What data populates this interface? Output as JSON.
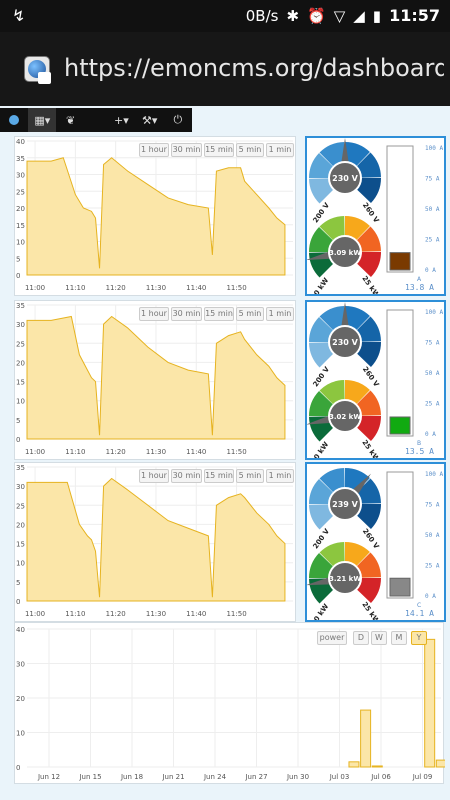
{
  "status": {
    "left_icon": "usb-icon",
    "speed": "0B/s",
    "time": "11:57",
    "icons": [
      "bluetooth-icon",
      "alarm-icon",
      "wifi-icon",
      "sim-icon",
      "battery-icon"
    ]
  },
  "browser": {
    "url": "https://emoncms.org/dashboard/view"
  },
  "toolbar": {
    "items": [
      "logo-icon",
      "grid-menu-icon",
      "leaf-icon",
      "plus-menu-icon",
      "wrench-menu-icon",
      "power-icon"
    ]
  },
  "time_buttons": [
    "1 hour",
    "30 min",
    "15 min",
    "5 min",
    "1 min"
  ],
  "charts": [
    {
      "chart_data": {
        "type": "area",
        "x": [
          "11:00",
          "11:10",
          "11:20",
          "11:30",
          "11:40",
          "11:50"
        ],
        "ylim": [
          0,
          40
        ],
        "yticks": [
          0,
          5,
          10,
          15,
          20,
          25,
          30,
          35,
          40
        ],
        "points": [
          [
            0,
            34
          ],
          [
            6,
            34
          ],
          [
            9,
            35
          ],
          [
            12,
            24
          ],
          [
            14,
            20
          ],
          [
            16,
            19
          ],
          [
            17,
            17
          ],
          [
            18,
            2
          ],
          [
            19,
            33
          ],
          [
            21,
            35
          ],
          [
            25,
            31
          ],
          [
            30,
            27
          ],
          [
            35,
            23
          ],
          [
            40,
            21
          ],
          [
            45,
            20
          ],
          [
            46,
            6
          ],
          [
            47,
            31
          ],
          [
            50,
            32
          ],
          [
            53,
            32
          ],
          [
            54,
            28
          ],
          [
            57,
            24
          ],
          [
            60,
            20
          ],
          [
            62,
            17
          ],
          [
            64,
            15
          ]
        ]
      },
      "gauges": {
        "voltage": "230 V",
        "voltage_min": "200 V",
        "voltage_max": "260 V",
        "power": "3.09 kW",
        "power_min": "0 kW",
        "power_max": "25 kW"
      },
      "current": {
        "ticks": [
          "100 A",
          "75 A",
          "50 A",
          "25 A",
          "0 A"
        ],
        "label": "A",
        "value": "13.8 A",
        "fill": 0.138,
        "color": "#7a3a00"
      }
    },
    {
      "chart_data": {
        "type": "area",
        "x": [
          "11:00",
          "11:10",
          "11:20",
          "11:30",
          "11:40",
          "11:50"
        ],
        "ylim": [
          0,
          35
        ],
        "yticks": [
          0,
          5,
          10,
          15,
          20,
          25,
          30,
          35
        ],
        "points": [
          [
            0,
            31
          ],
          [
            6,
            31
          ],
          [
            11,
            32
          ],
          [
            13,
            22
          ],
          [
            15,
            18
          ],
          [
            16,
            16
          ],
          [
            17,
            15
          ],
          [
            18,
            1
          ],
          [
            19,
            30
          ],
          [
            21,
            32
          ],
          [
            25,
            29
          ],
          [
            30,
            24
          ],
          [
            35,
            20
          ],
          [
            40,
            18
          ],
          [
            45,
            17
          ],
          [
            46,
            1
          ],
          [
            47,
            25
          ],
          [
            50,
            27
          ],
          [
            53,
            28
          ],
          [
            54,
            26
          ],
          [
            57,
            22
          ],
          [
            60,
            19
          ],
          [
            62,
            16
          ],
          [
            64,
            14
          ]
        ]
      },
      "gauges": {
        "voltage": "230 V",
        "voltage_min": "200 V",
        "voltage_max": "260 V",
        "power": "3.02 kW",
        "power_min": "0 kW",
        "power_max": "25 kW"
      },
      "current": {
        "ticks": [
          "100 A",
          "75 A",
          "50 A",
          "25 A",
          "0 A"
        ],
        "label": "B",
        "value": "13.5 A",
        "fill": 0.135,
        "color": "#11aa11"
      }
    },
    {
      "chart_data": {
        "type": "area",
        "x": [
          "11:00",
          "11:10",
          "11:20",
          "11:30",
          "11:40",
          "11:50"
        ],
        "ylim": [
          0,
          35
        ],
        "yticks": [
          0,
          5,
          10,
          15,
          20,
          25,
          30,
          35
        ],
        "points": [
          [
            0,
            31
          ],
          [
            6,
            31
          ],
          [
            10,
            31
          ],
          [
            13,
            20
          ],
          [
            15,
            17
          ],
          [
            16,
            16
          ],
          [
            17,
            13
          ],
          [
            18,
            1
          ],
          [
            19,
            30
          ],
          [
            21,
            32
          ],
          [
            25,
            29
          ],
          [
            30,
            25
          ],
          [
            35,
            21
          ],
          [
            40,
            19
          ],
          [
            45,
            17
          ],
          [
            46,
            1
          ],
          [
            47,
            25
          ],
          [
            50,
            27
          ],
          [
            53,
            28
          ],
          [
            54,
            27
          ],
          [
            57,
            23
          ],
          [
            60,
            20
          ],
          [
            62,
            17
          ],
          [
            64,
            15
          ]
        ]
      },
      "gauges": {
        "voltage": "239 V",
        "voltage_min": "200 V",
        "voltage_max": "260 V",
        "power": "3.21 kW",
        "power_min": "0 kW",
        "power_max": "25 kW"
      },
      "current": {
        "ticks": [
          "100 A",
          "75 A",
          "50 A",
          "25 A",
          "0 A"
        ],
        "label": "C",
        "value": "14.1 A",
        "fill": 0.141,
        "color": "#888888"
      }
    }
  ],
  "bottom": {
    "buttons": [
      "power",
      "D",
      "W",
      "M",
      "Y"
    ],
    "chart_data": {
      "type": "bar",
      "categories": [
        "Jun 12",
        "Jun 15",
        "Jun 18",
        "Jun 21",
        "Jun 24",
        "Jun 27",
        "Jun 30",
        "Jul 03",
        "Jul 06",
        "Jul 09"
      ],
      "ylim": [
        0,
        40
      ],
      "yticks": [
        0,
        10,
        20,
        30,
        40
      ],
      "bars": [
        [
          20.6,
          1.5
        ],
        [
          21.4,
          16.5
        ],
        [
          22.2,
          0.3
        ],
        [
          25.8,
          37
        ],
        [
          26.6,
          2
        ]
      ]
    }
  }
}
